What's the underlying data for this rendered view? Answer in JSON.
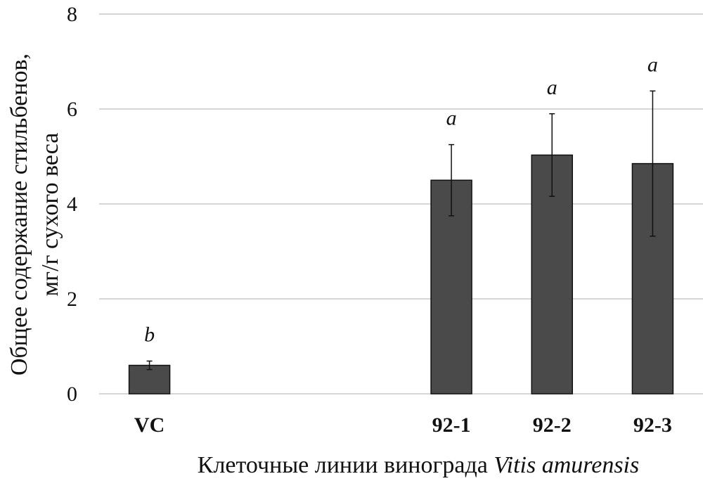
{
  "chart_data": {
    "type": "bar",
    "categories": [
      "VC",
      "",
      "",
      "92-1",
      "92-2",
      "92-3"
    ],
    "values": [
      0.6,
      null,
      null,
      4.5,
      5.03,
      4.85
    ],
    "errors": [
      0.09,
      null,
      null,
      0.75,
      0.87,
      1.53
    ],
    "significance": [
      "b",
      "",
      "",
      "a",
      "a",
      "a"
    ],
    "ylabel_line1": "Общее содержание стильбенов,",
    "ylabel_line2": "мг/г сухого веса",
    "xlabel_plain": "Клеточные линии винограда ",
    "xlabel_italic": "Vitis amurensis",
    "yticks": [
      0,
      2,
      4,
      6,
      8
    ],
    "ylim": [
      0,
      8
    ],
    "grid": true,
    "bar_color": "#4a4a4a",
    "grid_color": "#c8c8c8"
  }
}
